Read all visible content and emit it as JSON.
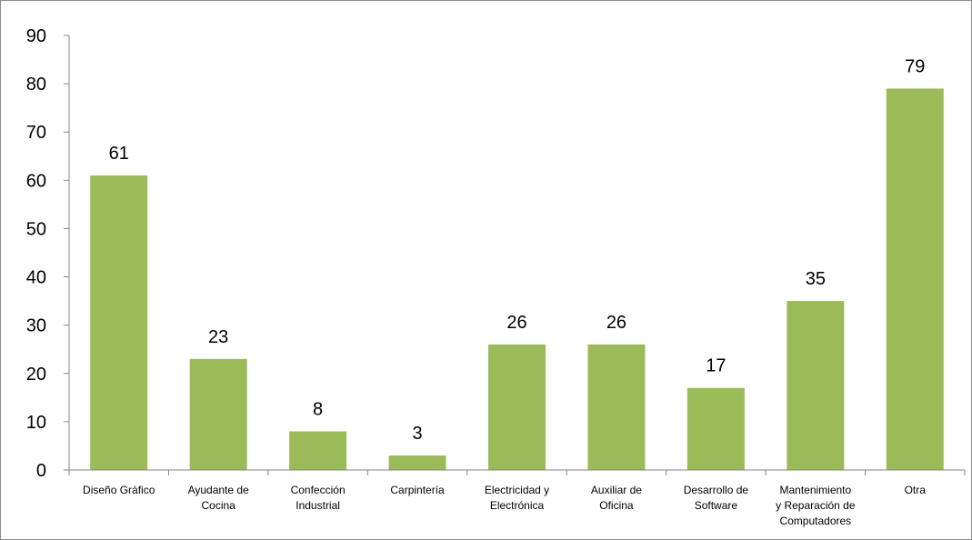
{
  "chart_data": {
    "type": "bar",
    "categories": [
      [
        "Diseño Gráfico"
      ],
      [
        "Ayudante de",
        "Cocina"
      ],
      [
        "Confección",
        "Industrial"
      ],
      [
        "Carpintería"
      ],
      [
        "Electricidad  y",
        "Electrónica"
      ],
      [
        "Auxiliar de",
        "Oficina"
      ],
      [
        "Desarrollo de",
        "Software"
      ],
      [
        "Mantenimiento",
        "y Reparación de",
        "Computadores"
      ],
      [
        "Otra"
      ]
    ],
    "values": [
      61,
      23,
      8,
      3,
      26,
      26,
      17,
      35,
      79
    ],
    "data_labels": [
      "61",
      "23",
      "8",
      "3",
      "26",
      "26",
      "17",
      "35",
      "79"
    ],
    "y_ticks": [
      0,
      10,
      20,
      30,
      40,
      50,
      60,
      70,
      80,
      90
    ],
    "ylim": [
      0,
      90
    ],
    "grid": false,
    "legend": "none",
    "title": "",
    "xlabel": "",
    "ylabel": "",
    "bar_color": "#9bbb59",
    "axis_color": "#868686"
  }
}
